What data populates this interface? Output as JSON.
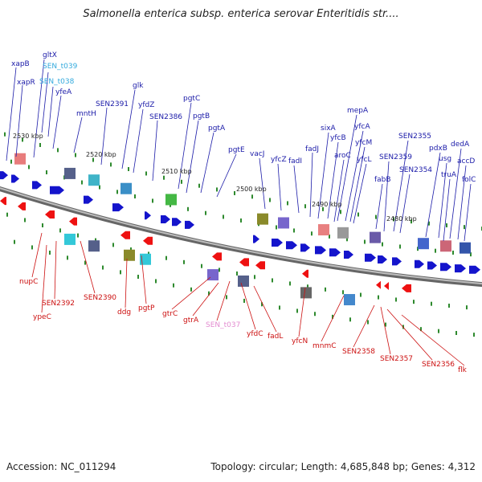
{
  "title": "Salmonella enterica subsp. enterica serovar Enteritidis str....",
  "footer": {
    "accession": "Accession: NC_011294",
    "summary": "Topology: circular; Length: 4,685,848 bp; Genes: 4,312"
  },
  "colors": {
    "forward_label": "#1a1aa8",
    "reverse_label": "#cc1010",
    "trna_label": "#33aadd",
    "pink_label": "#e38bd0",
    "backbone": "#888888",
    "tick": "#2e8a2e"
  },
  "kbp_markers": [
    "2530 kbp",
    "2520 kbp",
    "2510 kbp",
    "2500 kbp",
    "2490 kbp",
    "2480 kbp"
  ],
  "forward_labels": [
    "xapB",
    "gltX",
    "SEN_t039",
    "xapR",
    "SEN_t038",
    "yfeA",
    "mntH",
    "SEN2391",
    "glk",
    "yfdZ",
    "SEN2386",
    "pgtC",
    "pgtB",
    "pgtA",
    "pgtE",
    "vacJ",
    "yfcZ",
    "fadI",
    "fadJ",
    "sixA",
    "mepA",
    "yfcB",
    "yfcA",
    "aroC",
    "yfcM",
    "yfcL",
    "fabB",
    "SEN2355",
    "SEN2359",
    "SEN2354",
    "pdxB",
    "dedA",
    "usg",
    "accD",
    "truA",
    "folC"
  ],
  "reverse_labels": [
    "nupC",
    "SEN2392",
    "ypeC",
    "SEN2390",
    "ddg",
    "pgtP",
    "gtrC",
    "gtrA",
    "SEN_t037",
    "yfdC",
    "fadL",
    "yfcN",
    "mnmC",
    "SEN2358",
    "SEN2357",
    "SEN2356",
    "flk"
  ]
}
